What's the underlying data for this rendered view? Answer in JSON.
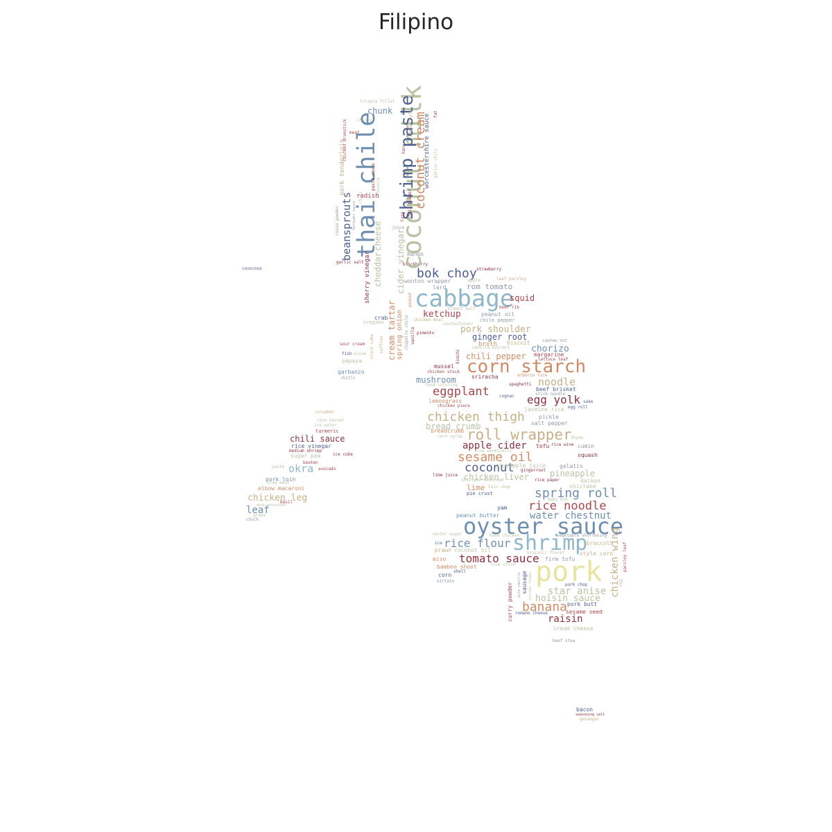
{
  "title": "Filipino",
  "palette": {
    "blue": "#6f8fb0",
    "lightblue": "#8fb7c8",
    "navy": "#4d5d8e",
    "red": "#a8464d",
    "maroon": "#8c2f3f",
    "orange": "#cf8c64",
    "tan": "#c6b086",
    "sage": "#b7c3a3",
    "yellow": "#e9e3a0",
    "gray": "#8f9aa1"
  },
  "words": [
    {
      "text": "cabbage",
      "color": "lightblue"
    },
    {
      "text": "oyster sauce",
      "color": "blue"
    },
    {
      "text": "pork",
      "color": "yellow"
    },
    {
      "text": "shrimp",
      "color": "lightblue"
    },
    {
      "text": "coconut milk",
      "color": "sage"
    },
    {
      "text": "thai chile",
      "color": "blue"
    },
    {
      "text": "shrimp paste",
      "color": "navy"
    },
    {
      "text": "corn starch",
      "color": "orange"
    },
    {
      "text": "coconut cream",
      "color": "orange"
    },
    {
      "text": "roll wrapper",
      "color": "tan"
    },
    {
      "text": "chicken thigh",
      "color": "tan"
    },
    {
      "text": "sesame oil",
      "color": "orange"
    },
    {
      "text": "spring roll",
      "color": "blue"
    },
    {
      "text": "rice noodle",
      "color": "red"
    },
    {
      "text": "eggplant",
      "color": "red"
    },
    {
      "text": "egg yolk",
      "color": "maroon"
    },
    {
      "text": "coconut",
      "color": "navy"
    },
    {
      "text": "banana",
      "color": "orange"
    },
    {
      "text": "tomato sauce",
      "color": "maroon"
    },
    {
      "text": "rice flour",
      "color": "blue"
    },
    {
      "text": "bok choy",
      "color": "navy"
    },
    {
      "text": "beansprouts",
      "color": "navy"
    },
    {
      "text": "water chestnut",
      "color": "blue"
    },
    {
      "text": "noodle",
      "color": "tan"
    },
    {
      "text": "apple cider",
      "color": "maroon"
    },
    {
      "text": "chicken wing",
      "color": "tan"
    },
    {
      "text": "star anise",
      "color": "sage"
    },
    {
      "text": "hoisin sauce",
      "color": "sage"
    },
    {
      "text": "raisin",
      "color": "maroon"
    },
    {
      "text": "chili sauce",
      "color": "maroon"
    },
    {
      "text": "okra",
      "color": "lightblue"
    },
    {
      "text": "chorizo",
      "color": "blue"
    },
    {
      "text": "chili pepper",
      "color": "orange"
    },
    {
      "text": "pork shoulder",
      "color": "tan"
    },
    {
      "text": "ginger root",
      "color": "navy"
    },
    {
      "text": "ketchup",
      "color": "red"
    },
    {
      "text": "cheddar",
      "color": "sage"
    },
    {
      "text": "cheese",
      "color": "sage"
    },
    {
      "text": "cider vinegar",
      "color": "sage"
    },
    {
      "text": "cream tartar",
      "color": "orange"
    },
    {
      "text": "mushroom",
      "color": "blue"
    },
    {
      "text": "chicken leg",
      "color": "tan"
    },
    {
      "text": "leaf",
      "color": "blue"
    },
    {
      "text": "squid",
      "color": "red"
    },
    {
      "text": "rom tomato",
      "color": "gray"
    },
    {
      "text": "chunk",
      "color": "blue"
    },
    {
      "text": "pineapple",
      "color": "sage"
    },
    {
      "text": "chicken liver",
      "color": "sage"
    },
    {
      "text": "bread crumb",
      "color": "sage"
    },
    {
      "text": "lime",
      "color": "orange"
    },
    {
      "text": "spring onion",
      "color": "orange"
    },
    {
      "text": "sherry vinegar",
      "color": "maroon"
    },
    {
      "text": "pork tenderloin",
      "color": "tan"
    },
    {
      "text": "worcestershire sauce",
      "color": "navy"
    },
    {
      "text": "radish",
      "color": "red"
    },
    {
      "text": "lard",
      "color": "gray"
    },
    {
      "text": "mango",
      "color": "gray"
    },
    {
      "text": "wonton wrapper",
      "color": "gray"
    },
    {
      "text": "crab",
      "color": "navy"
    },
    {
      "text": "oregano",
      "color": "sage"
    },
    {
      "text": "peanut oil",
      "color": "gray"
    },
    {
      "text": "chile pepper",
      "color": "gray"
    },
    {
      "text": "broth",
      "color": "orange"
    },
    {
      "text": "biscuit",
      "color": "tan"
    },
    {
      "text": "margarine",
      "color": "red"
    },
    {
      "text": "mussel",
      "color": "maroon"
    },
    {
      "text": "sriracha",
      "color": "maroon"
    },
    {
      "text": "beef brisket",
      "color": "navy"
    },
    {
      "text": "lemongrass",
      "color": "orange"
    },
    {
      "text": "salt pepper",
      "color": "gray"
    },
    {
      "text": "pickle",
      "color": "gray"
    },
    {
      "text": "tofu",
      "color": "maroon"
    },
    {
      "text": "cumin",
      "color": "gray"
    },
    {
      "text": "squash",
      "color": "maroon"
    },
    {
      "text": "papaya",
      "color": "sage"
    },
    {
      "text": "garbanzo",
      "color": "blue"
    },
    {
      "text": "rice vinegar",
      "color": "navy"
    },
    {
      "text": "sugar pea",
      "color": "sage"
    },
    {
      "text": "pork loin",
      "color": "blue"
    },
    {
      "text": "elbow macaroni",
      "color": "orange"
    },
    {
      "text": "daikon",
      "color": "sage"
    },
    {
      "text": "shiitake",
      "color": "sage"
    },
    {
      "text": "yam",
      "color": "navy"
    },
    {
      "text": "peanut butter",
      "color": "blue"
    },
    {
      "text": "prawn",
      "color": "tan"
    },
    {
      "text": "coconut oil",
      "color": "sage"
    },
    {
      "text": "firm tofu",
      "color": "gray"
    },
    {
      "text": "broccoli",
      "color": "tan"
    },
    {
      "text": "style corn",
      "color": "tan"
    },
    {
      "text": "bamboo shoot",
      "color": "orange"
    },
    {
      "text": "miso",
      "color": "orange"
    },
    {
      "text": "corn",
      "color": "navy"
    },
    {
      "text": "sausage",
      "color": "navy"
    },
    {
      "text": "curry powder",
      "color": "red"
    },
    {
      "text": "pork butt",
      "color": "navy"
    },
    {
      "text": "sesame seed",
      "color": "red"
    },
    {
      "text": "cream cheese",
      "color": "sage"
    },
    {
      "text": "jasmine rice",
      "color": "sage"
    },
    {
      "text": "gelatin",
      "color": "gray"
    },
    {
      "text": "pie crust",
      "color": "navy"
    },
    {
      "text": "tilapia fillet",
      "color": "sage"
    },
    {
      "text": "cherry",
      "color": "sage"
    },
    {
      "text": "meat",
      "color": "red"
    },
    {
      "text": "chicken drumstick",
      "color": "red"
    },
    {
      "text": "cocoa powder",
      "color": "gray"
    },
    {
      "text": "pasta sauce",
      "color": "maroon"
    },
    {
      "text": "chili",
      "color": "sage"
    },
    {
      "text": "chili powder",
      "color": "maroon"
    },
    {
      "text": "cream style",
      "color": "tan"
    },
    {
      "text": "garlic chili",
      "color": "sage"
    },
    {
      "text": "fat",
      "color": "maroon"
    },
    {
      "text": "ham",
      "color": "red"
    },
    {
      "text": "juice",
      "color": "gray"
    },
    {
      "text": "tuna",
      "color": "red"
    },
    {
      "text": "couscous",
      "color": "navy"
    },
    {
      "text": "garlic salt",
      "color": "maroon"
    },
    {
      "text": "blackberry",
      "color": "maroon"
    },
    {
      "text": "strawberry",
      "color": "maroon"
    },
    {
      "text": "leaf parsley",
      "color": "tan"
    },
    {
      "text": "apple",
      "color": "sage"
    },
    {
      "text": "peanut",
      "color": "orange"
    },
    {
      "text": "breast half",
      "color": "sage"
    },
    {
      "text": "beef rib",
      "color": "red"
    },
    {
      "text": "chicken meat",
      "color": "tan"
    },
    {
      "text": "confectioner",
      "color": "sage"
    },
    {
      "text": "pimento",
      "color": "maroon"
    },
    {
      "text": "saffron",
      "color": "tan"
    },
    {
      "text": "stock cube",
      "color": "tan"
    },
    {
      "text": "chipotle chile",
      "color": "gray"
    },
    {
      "text": "vanilla",
      "color": "maroon"
    },
    {
      "text": "sour cream",
      "color": "red"
    },
    {
      "text": "fish",
      "color": "navy"
    },
    {
      "text": "olive",
      "color": "sage"
    },
    {
      "text": "chilli",
      "color": "gray"
    },
    {
      "text": "kimchi",
      "color": "maroon"
    },
    {
      "text": "vanilla extract",
      "color": "sage"
    },
    {
      "text": "cashew nut",
      "color": "gray"
    },
    {
      "text": "lettuce leaf",
      "color": "red"
    },
    {
      "text": "chicken stock",
      "color": "red"
    },
    {
      "text": "food coloring",
      "color": "sage"
    },
    {
      "text": "arborio rice",
      "color": "orange"
    },
    {
      "text": "spaghetti",
      "color": "maroon"
    },
    {
      "text": "cognac",
      "color": "navy"
    },
    {
      "text": "stick noodle",
      "color": "gray"
    },
    {
      "text": "chicken piece",
      "color": "red"
    },
    {
      "text": "sake",
      "color": "navy"
    },
    {
      "text": "egg roll",
      "color": "navy"
    },
    {
      "text": "breadcrumb",
      "color": "orange"
    },
    {
      "text": "corn syrup",
      "color": "sage"
    },
    {
      "text": "thyme",
      "color": "sage"
    },
    {
      "text": "rice wine",
      "color": "maroon"
    },
    {
      "text": "rice vermicelli",
      "color": "sage"
    },
    {
      "text": "pineapple juice",
      "color": "sage"
    },
    {
      "text": "gingerroot",
      "color": "maroon"
    },
    {
      "text": "lime juice",
      "color": "maroon"
    },
    {
      "text": "rice paper",
      "color": "maroon"
    },
    {
      "text": "shiitake mushroom",
      "color": "sage"
    },
    {
      "text": "loin chop",
      "color": "sage"
    },
    {
      "text": "baby bok",
      "color": "sage"
    },
    {
      "text": "cucumber",
      "color": "tan"
    },
    {
      "text": "corn kernel",
      "color": "sage"
    },
    {
      "text": "ice water",
      "color": "sage"
    },
    {
      "text": "turmeric",
      "color": "red"
    },
    {
      "text": "medium shrimp",
      "color": "maroon"
    },
    {
      "text": "ice cube",
      "color": "maroon"
    },
    {
      "text": "beaten",
      "color": "red"
    },
    {
      "text": "paste",
      "color": "sage"
    },
    {
      "text": "avocado",
      "color": "red"
    },
    {
      "text": "stew meat",
      "color": "sage"
    },
    {
      "text": "basil",
      "color": "red"
    },
    {
      "text": "grass",
      "color": "sage"
    },
    {
      "text": "chuck",
      "color": "gray"
    },
    {
      "text": "caster sugar",
      "color": "sage"
    },
    {
      "text": "bone chicken",
      "color": "sage"
    },
    {
      "text": "vegetable shortening",
      "color": "gray"
    },
    {
      "text": "ice",
      "color": "navy"
    },
    {
      "text": "broccoli floret",
      "color": "sage"
    },
    {
      "text": "rice stick",
      "color": "sage"
    },
    {
      "text": "shell",
      "color": "navy"
    },
    {
      "text": "sirloin",
      "color": "blue"
    },
    {
      "text": "pork chop",
      "color": "navy"
    },
    {
      "text": "romano cheese",
      "color": "navy"
    },
    {
      "text": "beef stew",
      "color": "gray"
    },
    {
      "text": "egg",
      "color": "sage"
    },
    {
      "text": "parsley leaf",
      "color": "red"
    },
    {
      "text": "bacon",
      "color": "navy"
    },
    {
      "text": "seasoning salt",
      "color": "maroon"
    },
    {
      "text": "galangal",
      "color": "tan"
    },
    {
      "text": "cocoa",
      "color": "sage"
    },
    {
      "text": "monosodium",
      "color": "sage"
    },
    {
      "text": "teriyaki sauce",
      "color": "gray"
    },
    {
      "text": "pure vanilla",
      "color": "gray"
    },
    {
      "text": "chicken finger",
      "color": "sage"
    },
    {
      "text": "dark chocolate",
      "color": "sage"
    }
  ]
}
